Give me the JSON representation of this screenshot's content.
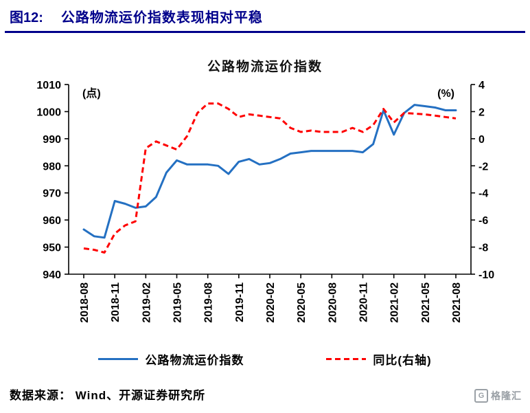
{
  "header": {
    "figure_label": "图12:",
    "title": "公路物流运价指数表现相对平稳",
    "accent_color": "#00008B"
  },
  "footer": {
    "source": "数据来源： Wind、开源证券研究所",
    "logo_mark": "G",
    "logo_text": "格隆汇"
  },
  "chart_data": {
    "type": "line",
    "title": "公路物流运价指数",
    "grid": false,
    "legend_position": "bottom",
    "left_axis": {
      "unit": "(点)",
      "min": 940,
      "max": 1010,
      "ticks": [
        1010,
        1000,
        990,
        980,
        970,
        960,
        950,
        940
      ]
    },
    "right_axis": {
      "unit": "(%)",
      "min": -10,
      "max": 4,
      "ticks": [
        4,
        2,
        0,
        -2,
        -4,
        -6,
        -8,
        -10
      ]
    },
    "x_tick_labels": [
      "2018-08",
      "2018-11",
      "2019-02",
      "2019-05",
      "2019-08",
      "2019-11",
      "2020-02",
      "2020-05",
      "2020-08",
      "2020-11",
      "2021-02",
      "2021-05",
      "2021-08"
    ],
    "series": [
      {
        "name": "公路物流运价指数",
        "axis": "left",
        "color": "#2470C2",
        "style": "solid",
        "values": [
          956.5,
          954,
          953.5,
          967,
          966,
          964.5,
          965,
          968.5,
          977.5,
          982,
          980.5,
          980.5,
          980.5,
          980,
          977,
          981.5,
          982.5,
          980.5,
          981,
          982.5,
          984.5,
          985,
          985.5,
          985.5,
          985.5,
          985.5,
          985.5,
          985,
          988,
          1000.5,
          991.5,
          999.5,
          1002.5,
          1002,
          1001.5,
          1000.5,
          1000.5
        ]
      },
      {
        "name": "同比(右轴)",
        "axis": "right",
        "color": "#FE0000",
        "style": "dashed",
        "values": [
          -8.1,
          -8.2,
          -8.4,
          -7.0,
          -6.4,
          -6.1,
          -0.7,
          -0.2,
          -0.5,
          -0.8,
          0.2,
          1.9,
          2.6,
          2.6,
          2.2,
          1.6,
          1.8,
          1.7,
          1.6,
          1.5,
          0.8,
          0.5,
          0.6,
          0.5,
          0.5,
          0.5,
          0.8,
          0.5,
          1.0,
          2.2,
          1.2,
          1.9,
          1.85,
          1.8,
          1.7,
          1.6,
          1.5
        ]
      }
    ]
  }
}
